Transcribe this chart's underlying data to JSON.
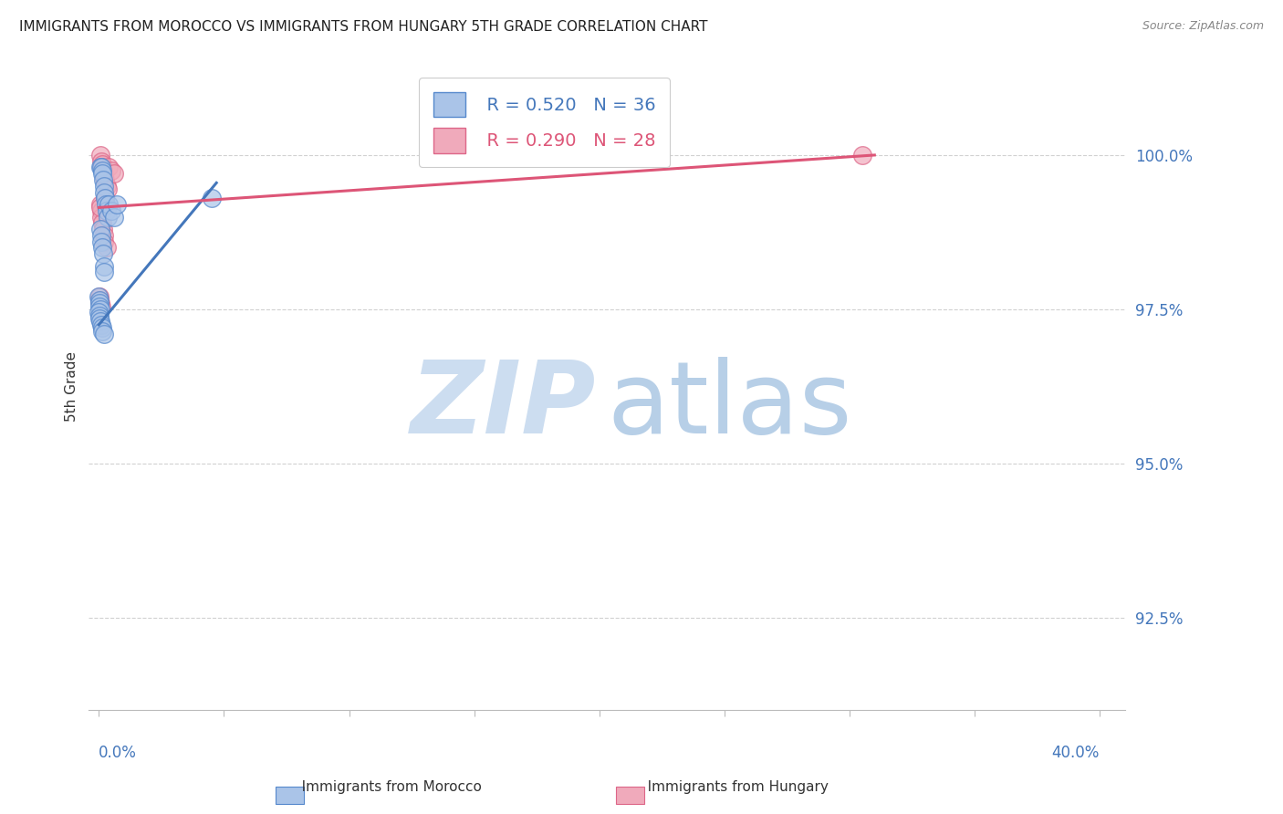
{
  "title": "IMMIGRANTS FROM MOROCCO VS IMMIGRANTS FROM HUNGARY 5TH GRADE CORRELATION CHART",
  "source": "Source: ZipAtlas.com",
  "ylabel": "5th Grade",
  "ylabel_ticks": [
    "100.0%",
    "97.5%",
    "95.0%",
    "92.5%"
  ],
  "ylim": [
    91.0,
    101.5
  ],
  "xlim": [
    -0.4,
    41.0
  ],
  "legend_blue_R": "R = 0.520",
  "legend_blue_N": "N = 36",
  "legend_pink_R": "R = 0.290",
  "legend_pink_N": "N = 28",
  "blue_x": [
    0.05,
    0.1,
    0.12,
    0.15,
    0.18,
    0.2,
    0.22,
    0.25,
    0.28,
    0.3,
    0.35,
    0.4,
    0.5,
    0.6,
    0.7,
    0.05,
    0.08,
    0.1,
    0.15,
    0.18,
    0.2,
    0.22,
    0.0,
    0.02,
    0.03,
    0.04,
    0.05,
    0.0,
    0.02,
    0.03,
    0.05,
    0.08,
    0.12,
    0.15,
    0.2,
    4.5
  ],
  "blue_y": [
    99.8,
    99.8,
    99.75,
    99.7,
    99.6,
    99.5,
    99.4,
    99.3,
    99.2,
    99.1,
    99.0,
    99.2,
    99.1,
    99.0,
    99.2,
    98.8,
    98.7,
    98.6,
    98.5,
    98.4,
    98.2,
    98.1,
    97.7,
    97.65,
    97.6,
    97.55,
    97.5,
    97.45,
    97.4,
    97.35,
    97.3,
    97.25,
    97.2,
    97.15,
    97.1,
    99.3
  ],
  "pink_x": [
    0.05,
    0.1,
    0.12,
    0.15,
    0.18,
    0.2,
    0.22,
    0.25,
    0.3,
    0.35,
    0.4,
    0.5,
    0.6,
    0.05,
    0.08,
    0.1,
    0.15,
    0.18,
    0.2,
    0.22,
    0.02,
    0.03,
    0.05,
    0.08,
    0.25,
    0.3,
    30.5,
    0.07
  ],
  "pink_y": [
    100.0,
    99.9,
    99.85,
    99.8,
    99.75,
    99.7,
    99.65,
    99.6,
    99.5,
    99.45,
    99.8,
    99.75,
    99.7,
    99.2,
    99.1,
    99.0,
    98.9,
    98.8,
    98.7,
    98.6,
    97.7,
    97.65,
    97.6,
    97.55,
    99.3,
    98.5,
    100.0,
    99.15
  ],
  "blue_color": "#aac4e8",
  "pink_color": "#f0aabb",
  "blue_edge_color": "#5588cc",
  "pink_edge_color": "#dd6688",
  "blue_line_color": "#4477bb",
  "pink_line_color": "#dd5577",
  "blue_trend_x": [
    0.0,
    4.7
  ],
  "blue_trend_y": [
    97.25,
    99.55
  ],
  "pink_trend_x": [
    0.0,
    31.0
  ],
  "pink_trend_y": [
    99.15,
    100.0
  ],
  "watermark_zip_color": "#ccddf0",
  "watermark_atlas_color": "#99bbdd",
  "grid_color": "#cccccc",
  "title_color": "#222222",
  "tick_color": "#4477bb"
}
